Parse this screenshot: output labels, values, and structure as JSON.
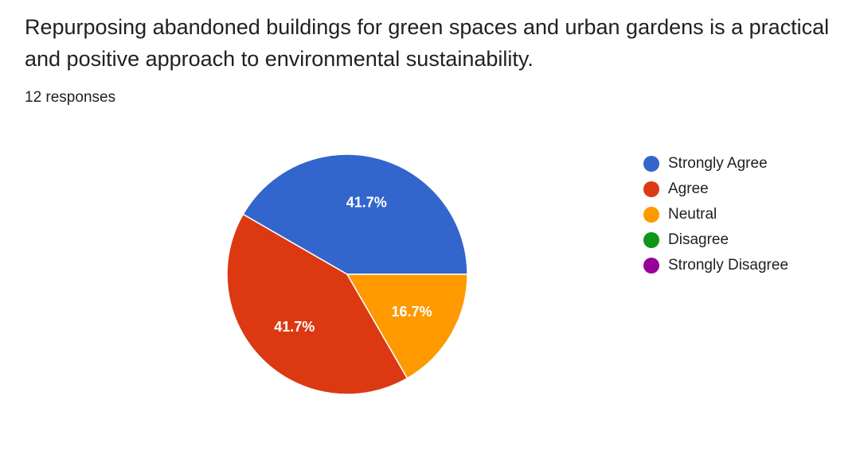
{
  "question": {
    "title": "Repurposing abandoned buildings for green spaces and urban gardens is a practical and positive approach to environmental sustainability.",
    "responses_label": "12 responses"
  },
  "chart_data": {
    "type": "pie",
    "title": "Repurposing abandoned buildings for green spaces and urban gardens is a practical and positive approach to environmental sustainability.",
    "total_responses": 12,
    "categories": [
      "Strongly Agree",
      "Agree",
      "Neutral",
      "Disagree",
      "Strongly Disagree"
    ],
    "values": [
      5,
      5,
      2,
      0,
      0
    ],
    "percent_labels": [
      "41.7%",
      "41.7%",
      "16.7%",
      "",
      ""
    ],
    "colors": [
      "#3366cc",
      "#dc3912",
      "#ff9900",
      "#109618",
      "#990099"
    ],
    "legend_position": "right"
  }
}
